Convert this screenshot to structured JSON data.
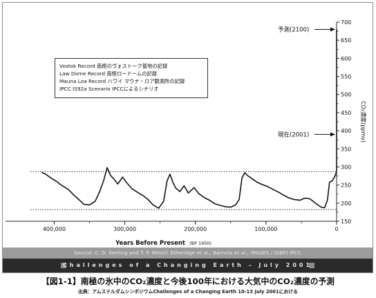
{
  "chart_data": {
    "type": "line",
    "xlabel": "Years Before Present",
    "xlabel_note": "(BP 1950)",
    "ylabel": "CO₂濃度(ppmv)",
    "xlim": [
      420000,
      0
    ],
    "ylim": [
      150,
      700
    ],
    "x_ticks": [
      "400,000",
      "300,000",
      "200,000",
      "100,000",
      "0"
    ],
    "x_tick_values": [
      400000,
      300000,
      200000,
      100000,
      0
    ],
    "y_ticks": [
      150,
      200,
      250,
      300,
      350,
      400,
      450,
      500,
      550,
      600,
      650,
      700
    ],
    "reference_lines": [
      {
        "y": 287,
        "style": "dotted"
      },
      {
        "y": 182,
        "style": "dotted"
      }
    ],
    "annotations": [
      {
        "text": "予測(2100)",
        "y": 680
      },
      {
        "text": "現在(2001)",
        "y": 390
      }
    ],
    "legend_entries": [
      "Vostok Record  南極のヴォストーク基地の記録",
      "Law Dome Record  南極ロードームの記録",
      "Mauna Loa Record  ハワイ マウナ・ロア観測所の記録",
      "IPCC IS92a Scenario  IPCCによるシナリオ"
    ],
    "series": [
      {
        "values": [
          [
            418000,
            285
          ],
          [
            412000,
            280
          ],
          [
            405000,
            270
          ],
          [
            398000,
            262
          ],
          [
            390000,
            250
          ],
          [
            380000,
            238
          ],
          [
            372000,
            222
          ],
          [
            365000,
            210
          ],
          [
            358000,
            197
          ],
          [
            350000,
            195
          ],
          [
            342000,
            205
          ],
          [
            336000,
            230
          ],
          [
            330000,
            262
          ],
          [
            325000,
            298
          ],
          [
            320000,
            276
          ],
          [
            315000,
            266
          ],
          [
            310000,
            253
          ],
          [
            303000,
            272
          ],
          [
            298000,
            258
          ],
          [
            290000,
            240
          ],
          [
            282000,
            230
          ],
          [
            275000,
            222
          ],
          [
            267000,
            210
          ],
          [
            260000,
            195
          ],
          [
            252000,
            186
          ],
          [
            245000,
            205
          ],
          [
            240000,
            262
          ],
          [
            236000,
            280
          ],
          [
            232000,
            258
          ],
          [
            228000,
            242
          ],
          [
            222000,
            232
          ],
          [
            216000,
            248
          ],
          [
            210000,
            228
          ],
          [
            202000,
            243
          ],
          [
            195000,
            226
          ],
          [
            187000,
            215
          ],
          [
            180000,
            208
          ],
          [
            172000,
            198
          ],
          [
            165000,
            194
          ],
          [
            157000,
            190
          ],
          [
            150000,
            189
          ],
          [
            143000,
            195
          ],
          [
            138000,
            210
          ],
          [
            134000,
            270
          ],
          [
            130000,
            284
          ],
          [
            126000,
            276
          ],
          [
            120000,
            268
          ],
          [
            113000,
            258
          ],
          [
            106000,
            252
          ],
          [
            98000,
            246
          ],
          [
            90000,
            238
          ],
          [
            82000,
            230
          ],
          [
            75000,
            222
          ],
          [
            68000,
            215
          ],
          [
            60000,
            210
          ],
          [
            52000,
            208
          ],
          [
            45000,
            214
          ],
          [
            38000,
            212
          ],
          [
            30000,
            200
          ],
          [
            22000,
            189
          ],
          [
            17000,
            187
          ],
          [
            13000,
            208
          ],
          [
            10000,
            258
          ],
          [
            6000,
            262
          ],
          [
            3000,
            272
          ],
          [
            1000,
            282
          ],
          [
            0,
            290
          ]
        ]
      },
      {
        "values": [
          [
            0,
            290
          ],
          [
            0,
            370
          ],
          [
            0,
            680
          ]
        ]
      }
    ]
  },
  "source_text": "Source: C. D. Keeling and T. P. Whorf; Etheridge et al.; Barnola et al.;   (PAGES / IGBP)   IPCC",
  "banner": "Challenges of a Changing Earth – July 2001",
  "caption": "【図1-1】南極の氷中のCO₂濃度と今後100年における大気中のCO₂濃度の予測",
  "sub_caption": "出典：アムステルダムシンポジウムChallenges of a Changing Earth 10-13 July 2001における"
}
